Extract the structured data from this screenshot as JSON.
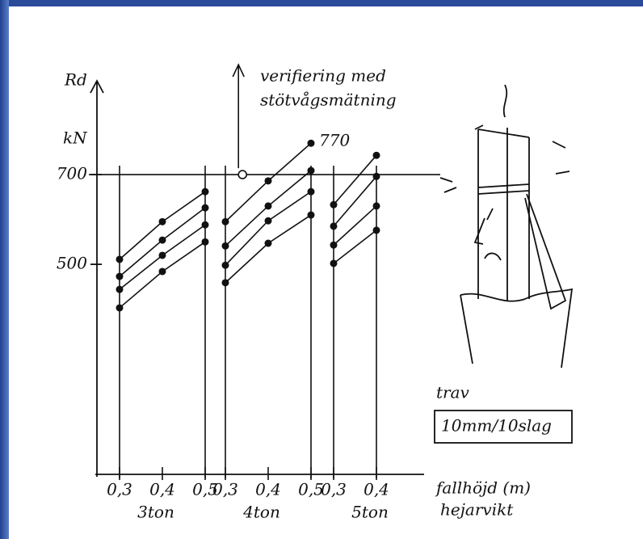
{
  "chart_data": {
    "type": "line",
    "y_label": "Rd",
    "y_unit": "kN",
    "ylim": [
      30,
      910
    ],
    "yticks": [
      500,
      700
    ],
    "reference_line": 700,
    "color": "#111111",
    "x_label": "fallhöjd (m)",
    "panel_label": "hejarvikt",
    "panels": [
      {
        "name": "3ton",
        "xlim": [
          0.3,
          0.5
        ],
        "x": [
          0.3,
          0.4,
          0.5
        ],
        "xticks": [
          {
            "value": 0.3,
            "label": "0,3"
          },
          {
            "value": 0.4,
            "label": "0,4"
          },
          {
            "value": 0.5,
            "label": "0,5"
          }
        ],
        "series": [
          {
            "values": [
              511,
              595,
              662
            ]
          },
          {
            "values": [
              473,
              554,
              626
            ]
          },
          {
            "values": [
              444,
              520,
              588
            ]
          },
          {
            "values": [
              403,
              484,
              550
            ]
          }
        ]
      },
      {
        "name": "4ton",
        "xlim": [
          0.3,
          0.5
        ],
        "x": [
          0.3,
          0.4,
          0.5
        ],
        "xticks": [
          {
            "value": 0.3,
            "label": "0,3"
          },
          {
            "value": 0.4,
            "label": "0,4"
          },
          {
            "value": 0.5,
            "label": "0,5"
          }
        ],
        "series": [
          {
            "values": [
              595,
              686,
              770
            ],
            "value_labels": [
              null,
              null,
              "770"
            ]
          },
          {
            "values": [
              541,
              630,
              709
            ]
          },
          {
            "values": [
              498,
              597,
              662
            ]
          },
          {
            "values": [
              459,
              547,
              610
            ]
          }
        ]
      },
      {
        "name": "5ton",
        "xlim": [
          0.3,
          0.4
        ],
        "x": [
          0.3,
          0.4
        ],
        "xticks": [
          {
            "value": 0.3,
            "label": "0,3"
          },
          {
            "value": 0.4,
            "label": "0,4"
          }
        ],
        "series": [
          {
            "values": [
              633,
              743
            ]
          },
          {
            "values": [
              585,
              696
            ]
          },
          {
            "values": [
              543,
              630
            ]
          },
          {
            "values": [
              502,
              576
            ]
          }
        ]
      }
    ],
    "verification": {
      "panel": 1,
      "x": 0.34,
      "y": 700,
      "label": [
        "verifiering med",
        "stötvågsmätning"
      ]
    },
    "legend_box": {
      "title": "trav",
      "text": "10mm/10slag"
    }
  }
}
